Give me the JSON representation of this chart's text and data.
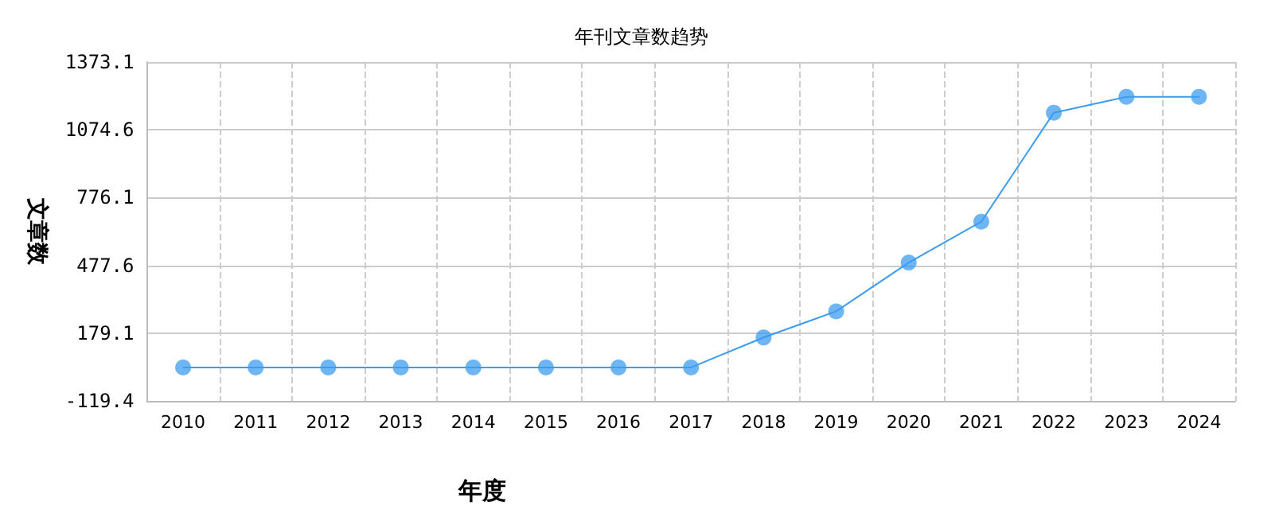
{
  "chart_data": {
    "type": "line",
    "title": "年刊文章数趋势",
    "xlabel": "年度",
    "ylabel": "文章数",
    "categories": [
      "2010",
      "2011",
      "2012",
      "2013",
      "2014",
      "2015",
      "2016",
      "2017",
      "2018",
      "2019",
      "2020",
      "2021",
      "2022",
      "2023",
      "2024"
    ],
    "series": [
      {
        "color": "#3d9cf0",
        "values": [
          28,
          28,
          28,
          28,
          28,
          28,
          28,
          28,
          160,
          275,
          490,
          670,
          1150,
          1220,
          1220
        ]
      }
    ],
    "ylim": [
      -119.4,
      1373.1
    ],
    "yticks": [
      -119.4,
      179.1,
      477.6,
      776.1,
      1074.6,
      1373.1
    ],
    "grid": true,
    "marker": "circle",
    "line_style": "solid"
  }
}
